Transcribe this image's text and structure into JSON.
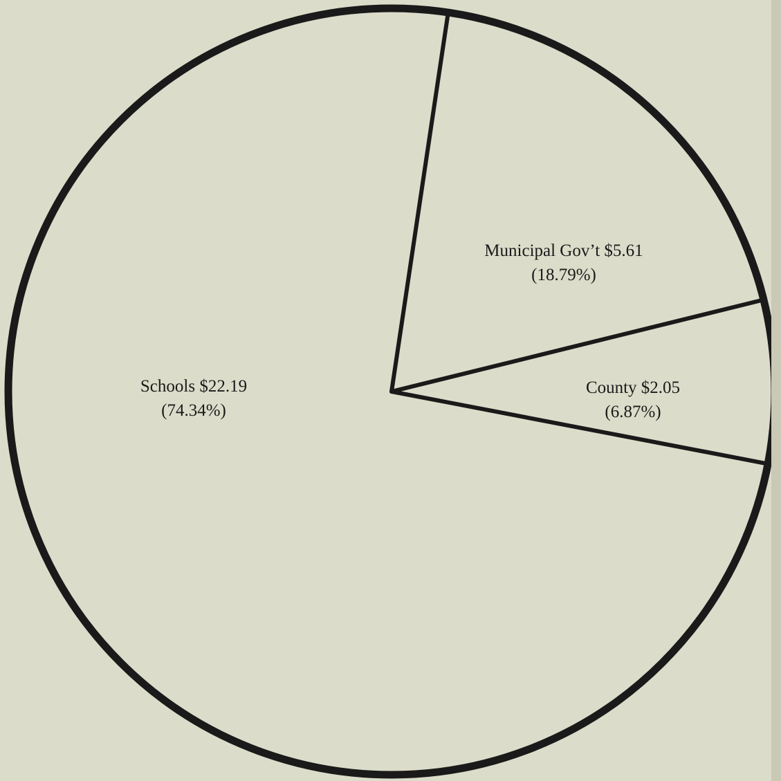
{
  "chart_data": {
    "type": "pie",
    "title": "",
    "slices": [
      {
        "label": "Municipal Gov’t $5.61",
        "percent_label": "(18.79%)",
        "value": 5.61,
        "percent": 18.79
      },
      {
        "label": "County $2.05",
        "percent_label": "(6.87%)",
        "value": 2.05,
        "percent": 6.87
      },
      {
        "label": "Schools $22.19",
        "percent_label": "(74.34%)",
        "value": 22.19,
        "percent": 74.34
      }
    ],
    "legend": "none",
    "colors": {
      "background": "#dcdcca",
      "slice_fill": "#dcdcca",
      "stroke": "#1a1a1a"
    }
  }
}
